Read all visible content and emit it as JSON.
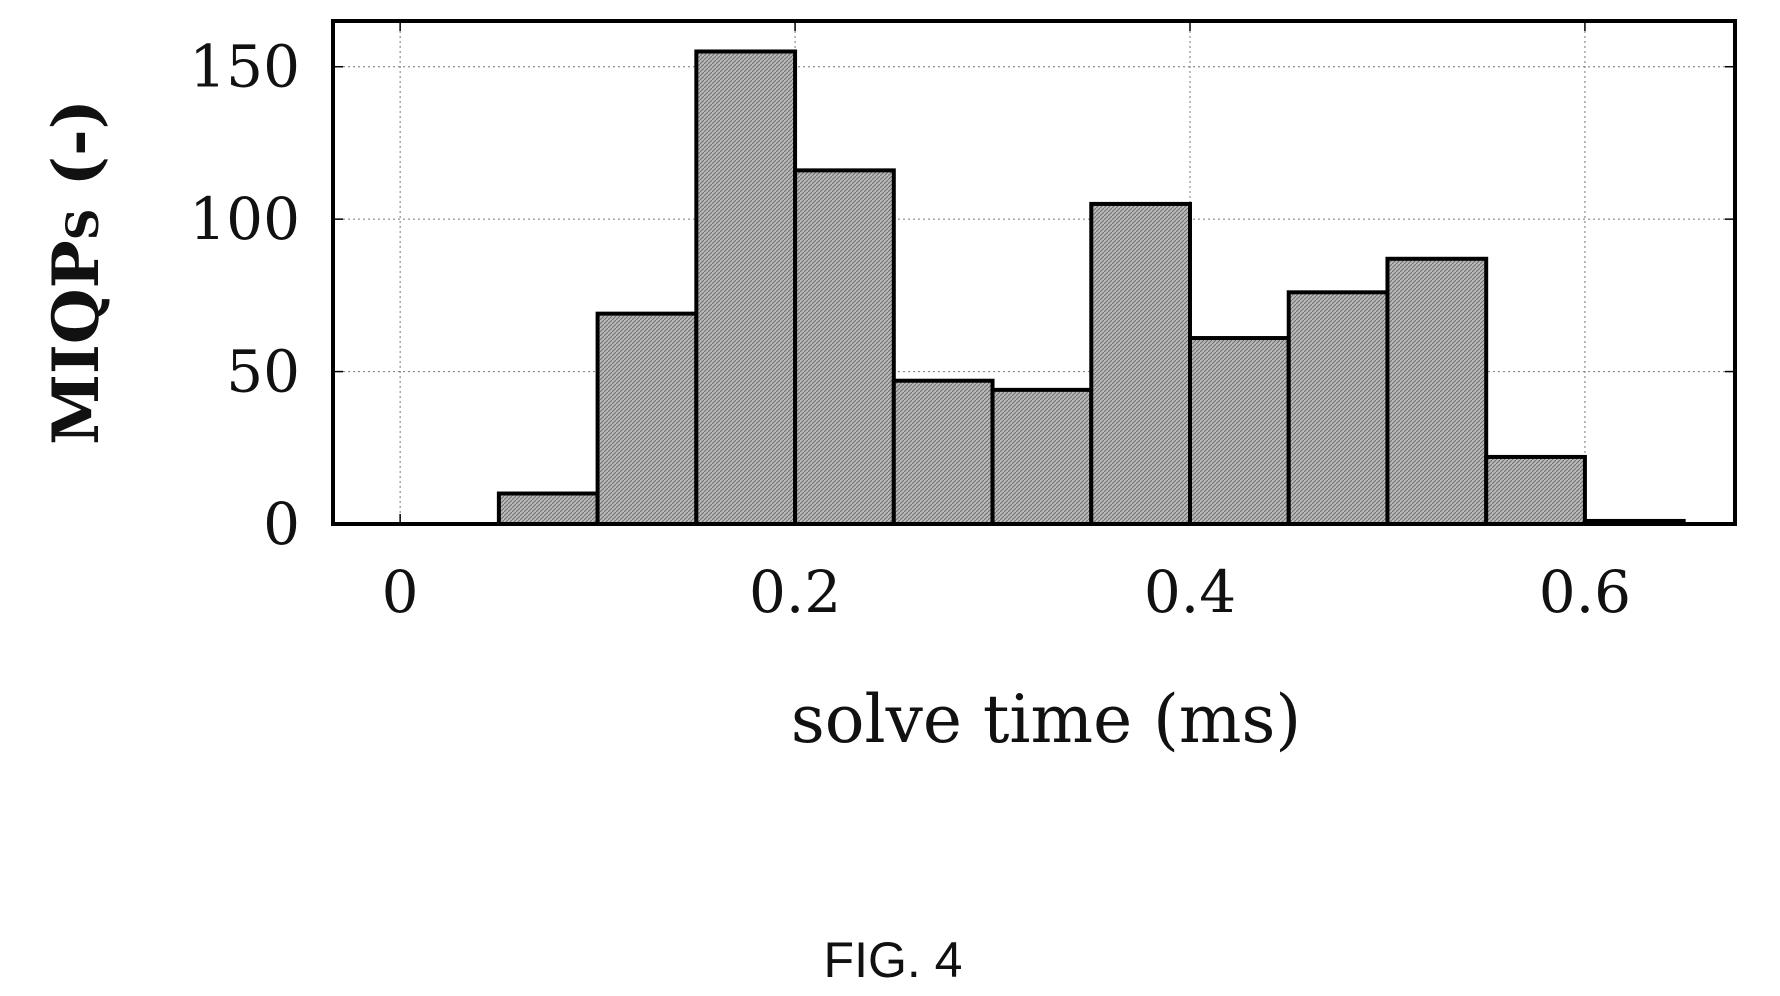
{
  "chart_data": {
    "type": "bar",
    "bin_edges": [
      0,
      0.05,
      0.1,
      0.15,
      0.2,
      0.25,
      0.3,
      0.35,
      0.4,
      0.45,
      0.5,
      0.55,
      0.6,
      0.65
    ],
    "values": [
      0,
      10,
      69,
      155,
      116,
      47,
      44,
      105,
      61,
      76,
      87,
      22,
      1
    ],
    "xlabel": "solve time (ms)",
    "ylabel_main": "MIQP",
    "ylabel_sub": "S",
    "ylabel_unit": " (-)",
    "xticks": [
      0,
      0.2,
      0.4,
      0.6
    ],
    "xtick_labels": [
      "0",
      "0.2",
      "0.4",
      "0.6"
    ],
    "yticks": [
      0,
      50,
      100,
      150
    ],
    "ytick_labels": [
      "0",
      "50",
      "100",
      "150"
    ],
    "xlim": [
      -0.034,
      0.676
    ],
    "ylim": [
      0,
      165
    ],
    "grid": true,
    "bar_color": "#a8a8a8",
    "edge_color": "#000000"
  },
  "caption": "FIG. 4"
}
